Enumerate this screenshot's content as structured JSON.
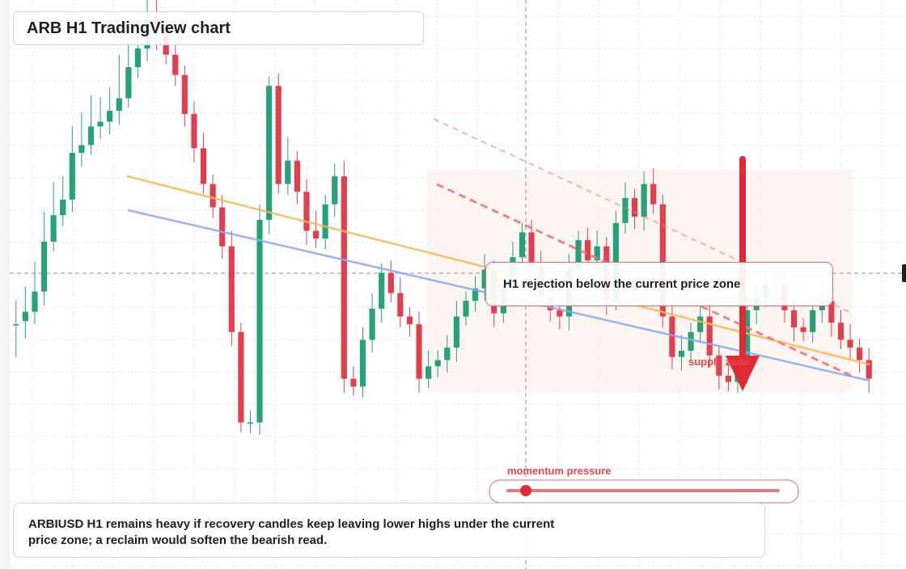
{
  "title": "ARB H1 TradingView chart",
  "callout": "H1 rejection below the current price zone",
  "labels": {
    "supply": "supply zone",
    "momentum": "momentum pressure"
  },
  "note": "ARBIUSD H1 remains heavy if recovery candles keep leaving lower highs under the current price zone; a reclaim would soften the bearish read.",
  "colors": {
    "bull": "#26a17b",
    "bear": "#e0404d",
    "trend_orange": "#f5b85a",
    "trend_blue": "#8aa8f0",
    "resistance": "#e77a80",
    "arrow": "#e02a36",
    "crosshair": "#8a8f99"
  },
  "chart_data": {
    "type": "candlestick",
    "symbol": "ARBIUSD",
    "timeframe": "H1",
    "xlabel": "",
    "ylabel": "",
    "ohlc": [
      [
        155,
        155,
        140,
        164
      ],
      [
        157,
        163,
        153,
        171
      ],
      [
        163,
        176,
        168,
        185
      ],
      [
        176,
        208,
        205,
        221
      ],
      [
        208,
        225,
        218,
        238
      ],
      [
        225,
        235,
        228,
        240
      ],
      [
        235,
        265,
        262,
        276
      ],
      [
        265,
        270,
        266,
        283
      ],
      [
        270,
        282,
        279,
        292
      ],
      [
        282,
        285,
        281,
        295
      ],
      [
        285,
        292,
        288,
        299
      ],
      [
        292,
        300,
        298,
        318
      ],
      [
        300,
        320,
        319,
        330
      ],
      [
        320,
        332,
        330,
        343
      ],
      [
        332,
        350,
        347,
        360
      ],
      [
        350,
        345,
        358,
        340
      ],
      [
        345,
        328,
        342,
        330
      ],
      [
        328,
        315,
        328,
        320
      ],
      [
        315,
        290,
        310,
        298
      ],
      [
        290,
        268,
        282,
        275
      ],
      [
        268,
        245,
        255,
        250
      ],
      [
        245,
        230,
        240,
        236
      ],
      [
        230,
        205,
        218,
        211
      ],
      [
        205,
        150,
        162,
        155
      ],
      [
        150,
        92,
        100,
        98
      ],
      [
        92,
        92,
        92,
        92
      ],
      [
        92,
        222,
        215,
        220
      ],
      [
        222,
        308,
        300,
        304
      ],
      [
        308,
        245,
        252,
        255
      ],
      [
        245,
        260,
        255,
        265
      ],
      [
        260,
        240,
        250,
        248
      ],
      [
        240,
        215,
        225,
        220
      ],
      [
        215,
        210,
        217,
        218
      ],
      [
        210,
        232,
        225,
        228
      ],
      [
        232,
        250,
        242,
        248
      ],
      [
        250,
        120,
        132,
        128
      ],
      [
        120,
        115,
        121,
        122
      ],
      [
        115,
        145,
        140,
        138
      ],
      [
        145,
        165,
        160,
        158
      ],
      [
        165,
        188,
        183,
        182
      ],
      [
        188,
        175,
        180,
        178
      ],
      [
        175,
        160,
        167,
        164
      ],
      [
        160,
        155,
        160,
        158
      ],
      [
        155,
        120,
        126,
        124
      ],
      [
        120,
        128,
        128,
        126
      ],
      [
        128,
        132,
        130,
        130
      ],
      [
        132,
        140,
        138,
        136
      ],
      [
        140,
        160,
        155,
        152
      ],
      [
        160,
        170,
        166,
        164
      ],
      [
        170,
        178,
        175,
        174
      ],
      [
        178,
        190,
        185,
        184
      ],
      [
        190,
        162,
        168,
        166
      ],
      [
        162,
        180,
        176,
        175
      ],
      [
        180,
        198,
        195,
        194
      ],
      [
        198,
        214,
        208,
        205
      ],
      [
        214,
        192,
        201,
        196
      ],
      [
        192,
        172,
        181,
        178
      ],
      [
        172,
        164,
        171,
        168
      ],
      [
        164,
        160,
        166,
        163
      ],
      [
        160,
        190,
        185,
        183
      ],
      [
        190,
        209,
        204,
        202
      ],
      [
        209,
        196,
        201,
        200
      ],
      [
        196,
        205,
        201,
        203
      ],
      [
        205,
        170,
        178,
        175
      ],
      [
        170,
        220,
        210,
        212
      ],
      [
        220,
        236,
        232,
        230
      ],
      [
        236,
        224,
        232,
        230
      ],
      [
        224,
        245,
        238,
        240
      ],
      [
        245,
        232,
        240,
        236
      ],
      [
        232,
        160,
        168,
        165
      ],
      [
        160,
        134,
        145,
        142
      ],
      [
        134,
        138,
        138,
        138
      ],
      [
        138,
        150,
        146,
        145
      ],
      [
        150,
        160,
        156,
        155
      ],
      [
        160,
        135,
        140,
        137
      ],
      [
        135,
        122,
        127,
        125
      ],
      [
        122,
        118,
        120,
        119
      ],
      [
        118,
        125,
        123,
        122
      ],
      [
        125,
        164,
        160,
        158
      ],
      [
        164,
        172,
        168,
        170
      ],
      [
        172,
        180,
        176,
        178
      ],
      [
        180,
        180,
        180,
        180
      ],
      [
        180,
        164,
        172,
        168
      ],
      [
        164,
        153,
        158,
        156
      ],
      [
        153,
        150,
        151,
        151
      ],
      [
        150,
        164,
        158,
        160
      ],
      [
        164,
        170,
        168,
        168
      ],
      [
        170,
        156,
        164,
        162
      ],
      [
        156,
        145,
        150,
        148
      ],
      [
        145,
        140,
        141,
        140
      ],
      [
        140,
        132,
        135,
        134
      ],
      [
        132,
        120,
        124,
        121
      ]
    ]
  }
}
